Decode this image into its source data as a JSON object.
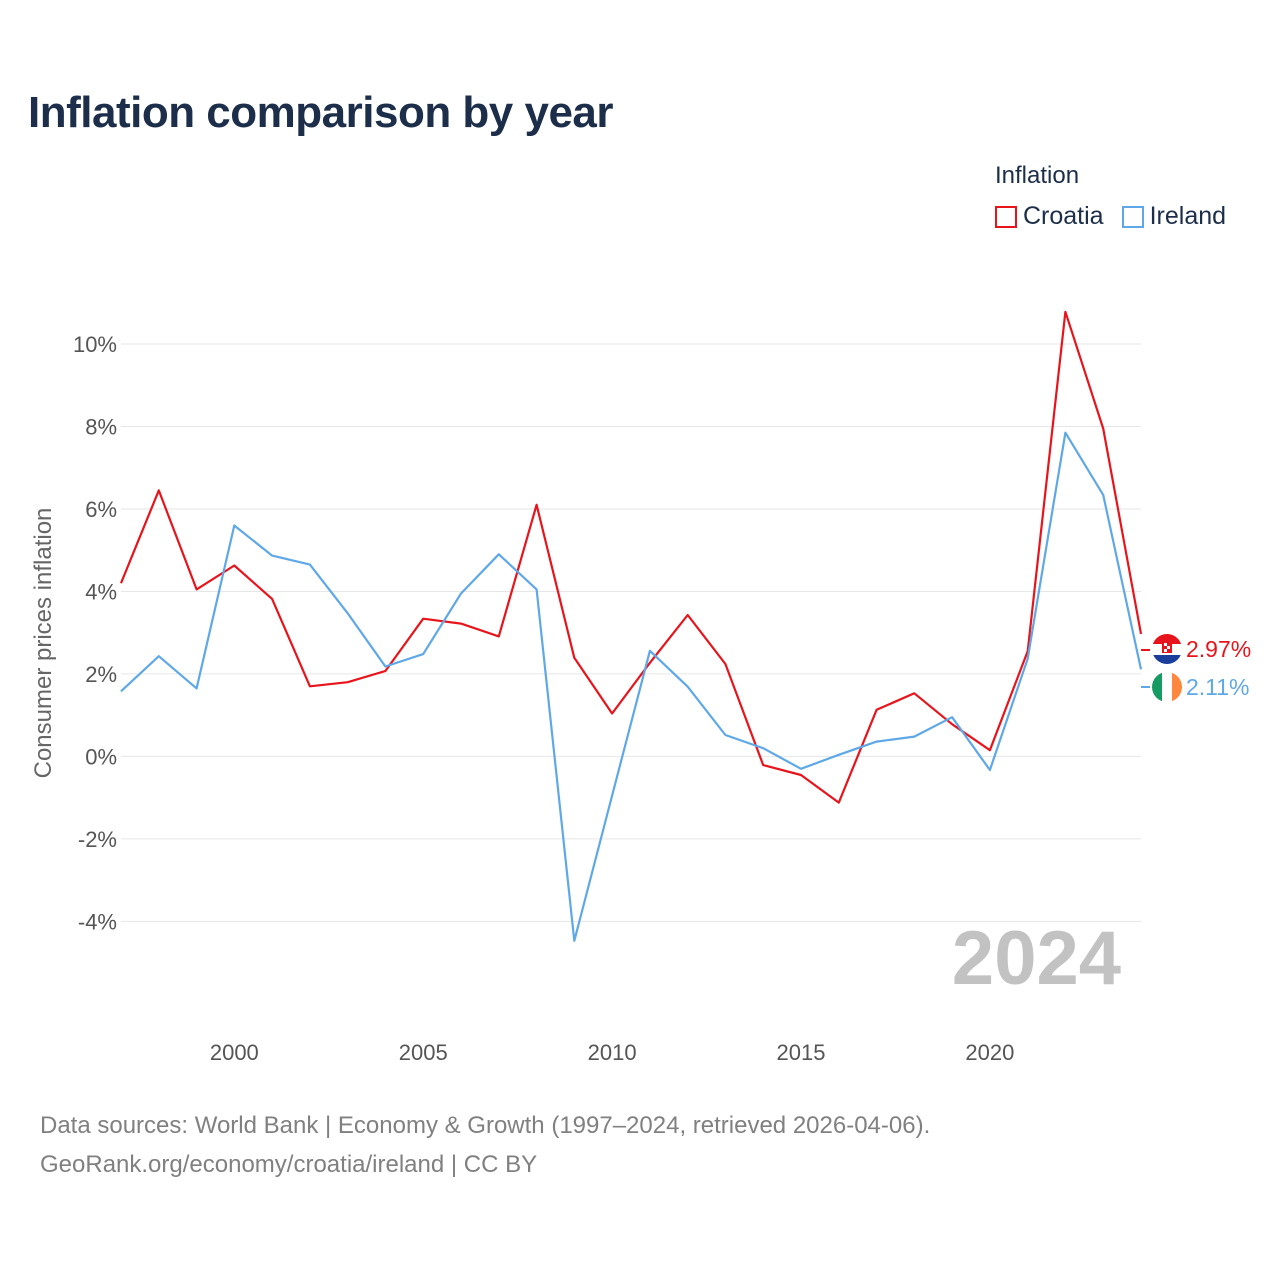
{
  "chart_data": {
    "type": "line",
    "title": "Inflation comparison by year",
    "ylabel": "Consumer prices inflation",
    "xlabel": "",
    "legend_title": "Inflation",
    "legend_position": "top-right",
    "x": [
      1997,
      1998,
      1999,
      2000,
      2001,
      2002,
      2003,
      2004,
      2005,
      2006,
      2007,
      2008,
      2009,
      2010,
      2011,
      2012,
      2013,
      2014,
      2015,
      2016,
      2017,
      2018,
      2019,
      2020,
      2021,
      2022,
      2023,
      2024
    ],
    "xlim": [
      1997,
      2024
    ],
    "ylim": [
      -5.3,
      10.8
    ],
    "x_ticks": [
      2000,
      2005,
      2010,
      2015,
      2020
    ],
    "y_ticks": [
      -4,
      -2,
      0,
      2,
      4,
      6,
      8,
      10
    ],
    "y_tick_labels": [
      "-4%",
      "-2%",
      "0%",
      "2%",
      "4%",
      "6%",
      "8%",
      "10%"
    ],
    "x_tick_labels": [
      "2000",
      "2005",
      "2010",
      "2015",
      "2020"
    ],
    "grid": "horizontal",
    "current_year_label": "2024",
    "series": [
      {
        "name": "Croatia",
        "color": "#e8141c",
        "values": [
          4.2,
          6.45,
          4.05,
          4.63,
          3.82,
          1.7,
          1.8,
          2.07,
          3.34,
          3.22,
          2.91,
          6.1,
          2.39,
          1.04,
          2.27,
          3.43,
          2.24,
          -0.21,
          -0.45,
          -1.12,
          1.13,
          1.53,
          0.78,
          0.15,
          2.55,
          10.78,
          7.95,
          2.97
        ],
        "end_label": "2.97%",
        "flag": "croatia-flag-icon"
      },
      {
        "name": "Ireland",
        "color": "#5fa8e8",
        "values": [
          1.58,
          2.43,
          1.65,
          5.6,
          4.87,
          4.65,
          3.47,
          2.18,
          2.48,
          3.95,
          4.9,
          4.05,
          -4.47,
          -0.95,
          2.56,
          1.69,
          0.52,
          0.2,
          -0.3,
          0.04,
          0.36,
          0.48,
          0.95,
          -0.33,
          2.37,
          7.85,
          6.34,
          2.11
        ],
        "end_label": "2.11%",
        "flag": "ireland-flag-icon"
      }
    ]
  },
  "footer": {
    "line1": "Data sources: World Bank | Economy & Growth (1997–2024, retrieved 2026-04-06).",
    "line2": "GeoRank.org/economy/croatia/ireland | CC BY"
  }
}
